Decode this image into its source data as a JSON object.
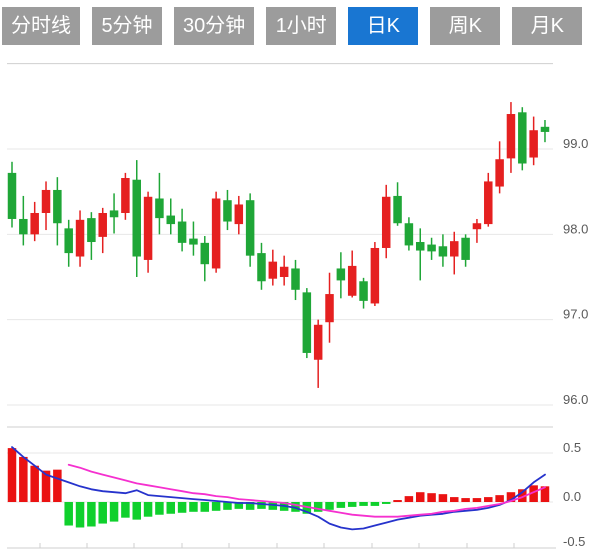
{
  "tabbar": {
    "items": [
      "分时线",
      "5分钟",
      "30分钟",
      "1小时",
      "日K",
      "周K",
      "月K"
    ],
    "active": "日K"
  },
  "colors": {
    "tab_bg": "#9c9c9c",
    "tab_active_bg": "#1976d2",
    "tab_text": "#ffffff",
    "candle_up": "#e52020",
    "candle_down": "#1fa637",
    "hist_up": "#ea1212",
    "hist_down": "#0fd02c",
    "dif_line": "#2633cc",
    "dea_line": "#f530cf",
    "grid_line": "#e7e7e7",
    "border_line": "#cfcfcf",
    "axis_label": "#595959",
    "background": "#ffffff"
  },
  "chart_data": {
    "type": "candlestick",
    "title": "",
    "convention": "red-up-green-down",
    "panels": [
      {
        "name": "price",
        "y_ticks": [
          {
            "label": "99.0",
            "value": 99.0
          },
          {
            "label": "98.0",
            "value": 98.0
          },
          {
            "label": "97.0",
            "value": 97.0
          },
          {
            "label": "96.0",
            "value": 96.0
          }
        ],
        "grid_values": [
          100.0,
          99.0,
          98.0,
          97.0,
          96.0
        ],
        "ohlc": [
          [
            98.72,
            98.85,
            98.08,
            98.18
          ],
          [
            98.18,
            98.45,
            97.87,
            98.0
          ],
          [
            98.0,
            98.38,
            97.92,
            98.25
          ],
          [
            98.25,
            98.62,
            98.05,
            98.52
          ],
          [
            98.52,
            98.67,
            97.87,
            98.13
          ],
          [
            98.07,
            98.17,
            97.62,
            97.78
          ],
          [
            97.74,
            98.28,
            97.62,
            98.17
          ],
          [
            98.19,
            98.26,
            97.7,
            97.91
          ],
          [
            97.97,
            98.31,
            97.78,
            98.25
          ],
          [
            98.28,
            98.48,
            98.01,
            98.2
          ],
          [
            98.25,
            98.72,
            98.17,
            98.66
          ],
          [
            98.64,
            98.87,
            97.5,
            97.74
          ],
          [
            97.7,
            98.5,
            97.55,
            98.44
          ],
          [
            98.42,
            98.72,
            98.0,
            98.19
          ],
          [
            98.22,
            98.42,
            98.0,
            98.12
          ],
          [
            98.15,
            98.3,
            97.8,
            97.9
          ],
          [
            97.95,
            98.15,
            97.75,
            97.88
          ],
          [
            97.9,
            97.98,
            97.45,
            97.65
          ],
          [
            97.6,
            98.5,
            97.55,
            98.42
          ],
          [
            98.4,
            98.52,
            98.05,
            98.15
          ],
          [
            98.12,
            98.45,
            98.0,
            98.35
          ],
          [
            98.4,
            98.48,
            97.62,
            97.75
          ],
          [
            97.78,
            97.9,
            97.35,
            97.45
          ],
          [
            97.48,
            97.82,
            97.4,
            97.68
          ],
          [
            97.5,
            97.75,
            97.4,
            97.62
          ],
          [
            97.6,
            97.7,
            97.23,
            97.35
          ],
          [
            97.32,
            97.37,
            96.55,
            96.61
          ],
          [
            96.53,
            97.0,
            96.2,
            96.94
          ],
          [
            96.97,
            97.55,
            96.73,
            97.3
          ],
          [
            97.6,
            97.79,
            97.25,
            97.46
          ],
          [
            97.28,
            97.81,
            97.26,
            97.63
          ],
          [
            97.45,
            97.49,
            97.13,
            97.22
          ],
          [
            97.19,
            97.91,
            97.16,
            97.84
          ],
          [
            97.84,
            98.58,
            97.72,
            98.44
          ],
          [
            98.45,
            98.61,
            98.1,
            98.13
          ],
          [
            98.13,
            98.2,
            97.81,
            97.87
          ],
          [
            97.91,
            98.07,
            97.46,
            97.81
          ],
          [
            97.88,
            97.96,
            97.7,
            97.8
          ],
          [
            97.86,
            98.0,
            97.62,
            97.74
          ],
          [
            97.74,
            98.03,
            97.53,
            97.92
          ],
          [
            97.96,
            98.0,
            97.62,
            97.7
          ],
          [
            98.06,
            98.18,
            97.9,
            98.13
          ],
          [
            98.12,
            98.72,
            98.09,
            98.62
          ],
          [
            98.56,
            99.09,
            98.48,
            98.88
          ],
          [
            98.89,
            99.55,
            98.72,
            99.41
          ],
          [
            99.43,
            99.49,
            98.75,
            98.83
          ],
          [
            98.9,
            99.38,
            98.81,
            99.22
          ],
          [
            99.26,
            99.34,
            99.08,
            99.2
          ]
        ]
      },
      {
        "name": "macd",
        "y_ticks": [
          {
            "label": "0.5",
            "value": 0.5
          },
          {
            "label": "0.0",
            "value": 0.0
          },
          {
            "label": "-0.5",
            "value": -0.5
          }
        ],
        "grid_values": [
          0.5,
          0.0
        ],
        "histogram": [
          0.55,
          0.46,
          0.37,
          0.32,
          0.33,
          -0.24,
          -0.26,
          -0.25,
          -0.22,
          -0.2,
          -0.16,
          -0.18,
          -0.15,
          -0.13,
          -0.12,
          -0.11,
          -0.1,
          -0.1,
          -0.09,
          -0.08,
          -0.07,
          -0.08,
          -0.07,
          -0.08,
          -0.09,
          -0.1,
          -0.12,
          -0.1,
          -0.08,
          -0.06,
          -0.05,
          -0.04,
          -0.04,
          -0.02,
          0.02,
          0.06,
          0.1,
          0.09,
          0.08,
          0.05,
          0.04,
          0.04,
          0.05,
          0.07,
          0.1,
          0.13,
          0.17,
          0.16
        ],
        "dif": [
          0.56,
          0.46,
          0.37,
          0.28,
          0.24,
          0.2,
          0.16,
          0.13,
          0.11,
          0.1,
          0.09,
          0.12,
          0.07,
          0.06,
          0.05,
          0.04,
          0.03,
          0.02,
          0.01,
          0.0,
          -0.01,
          -0.01,
          -0.02,
          -0.03,
          -0.04,
          -0.06,
          -0.1,
          -0.15,
          -0.22,
          -0.26,
          -0.28,
          -0.27,
          -0.24,
          -0.21,
          -0.18,
          -0.16,
          -0.14,
          -0.13,
          -0.12,
          -0.1,
          -0.09,
          -0.08,
          -0.06,
          -0.03,
          0.02,
          0.1,
          0.2,
          0.28
        ],
        "dea": [
          null,
          null,
          null,
          null,
          null,
          0.38,
          0.35,
          0.31,
          0.28,
          0.25,
          0.22,
          0.19,
          0.17,
          0.15,
          0.13,
          0.11,
          0.09,
          0.08,
          0.06,
          0.05,
          0.03,
          0.02,
          0.01,
          0.0,
          -0.01,
          -0.03,
          -0.05,
          -0.07,
          -0.09,
          -0.11,
          -0.13,
          -0.14,
          -0.15,
          -0.15,
          -0.15,
          -0.14,
          -0.13,
          -0.12,
          -0.1,
          -0.09,
          -0.07,
          -0.06,
          -0.04,
          -0.02,
          0.01,
          0.05,
          0.1,
          0.15
        ]
      }
    ],
    "x_axis": {
      "labels_visible": false,
      "tick_positions": [
        40,
        87,
        134,
        182,
        229,
        277,
        324,
        372,
        419,
        467,
        514
      ]
    }
  }
}
